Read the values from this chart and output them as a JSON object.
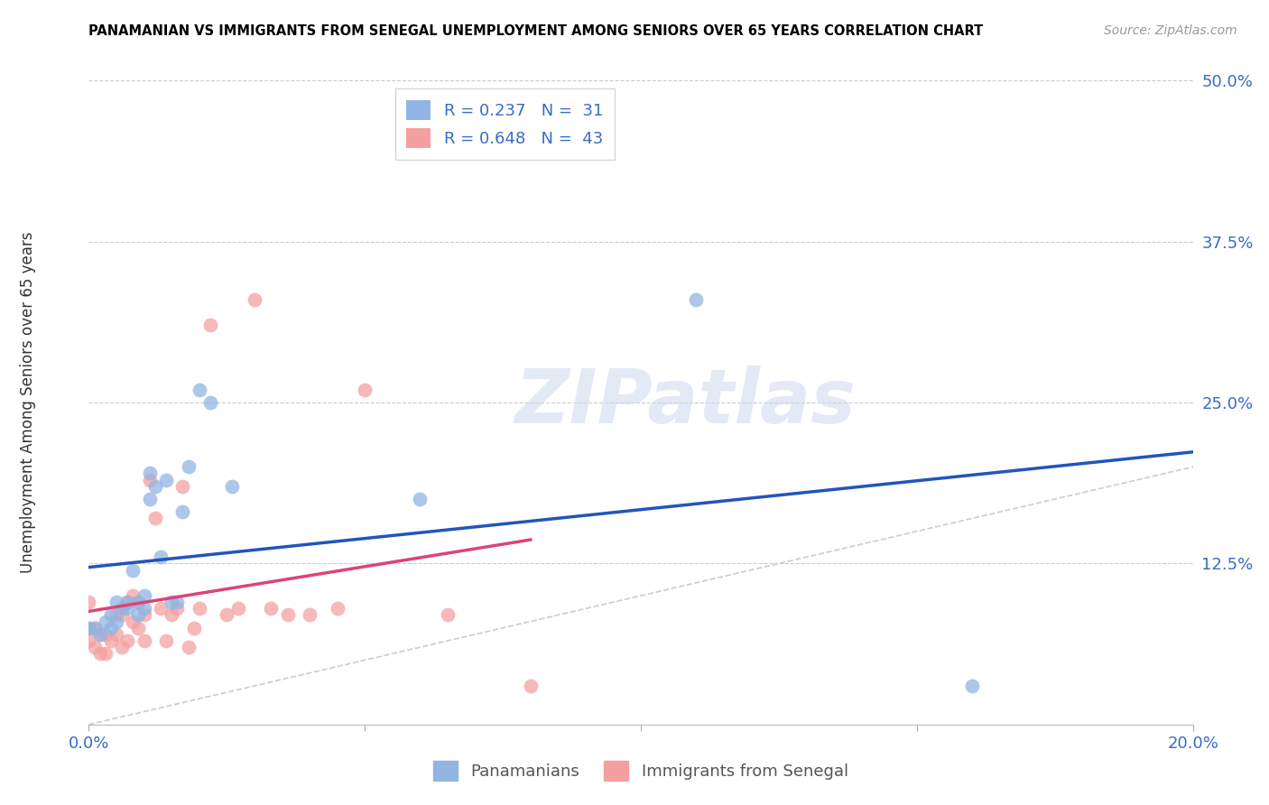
{
  "title": "PANAMANIAN VS IMMIGRANTS FROM SENEGAL UNEMPLOYMENT AMONG SENIORS OVER 65 YEARS CORRELATION CHART",
  "source": "Source: ZipAtlas.com",
  "ylabel_label": "Unemployment Among Seniors over 65 years",
  "xlim": [
    0.0,
    0.2
  ],
  "ylim": [
    0.0,
    0.5
  ],
  "xticks": [
    0.0,
    0.05,
    0.1,
    0.15,
    0.2
  ],
  "xticklabels": [
    "0.0%",
    "",
    "",
    "",
    "20.0%"
  ],
  "yticks": [
    0.0,
    0.125,
    0.25,
    0.375,
    0.5
  ],
  "yticklabels": [
    "",
    "12.5%",
    "25.0%",
    "37.5%",
    "50.0%"
  ],
  "legend_R1": "R = 0.237",
  "legend_N1": "N =  31",
  "legend_R2": "R = 0.648",
  "legend_N2": "N =  43",
  "color_blue": "#92b4e3",
  "color_pink": "#f4a0a0",
  "color_blue_line": "#2255bb",
  "color_pink_line": "#dd4477",
  "color_diag": "#cccccc",
  "watermark_text": "ZIPatlas",
  "panamanian_x": [
    0.0,
    0.001,
    0.002,
    0.003,
    0.004,
    0.004,
    0.005,
    0.005,
    0.006,
    0.007,
    0.007,
    0.008,
    0.009,
    0.009,
    0.01,
    0.01,
    0.011,
    0.011,
    0.012,
    0.013,
    0.014,
    0.015,
    0.016,
    0.017,
    0.018,
    0.02,
    0.022,
    0.026,
    0.06,
    0.11,
    0.16
  ],
  "panamanian_y": [
    0.075,
    0.075,
    0.07,
    0.08,
    0.075,
    0.085,
    0.08,
    0.095,
    0.09,
    0.09,
    0.095,
    0.12,
    0.085,
    0.095,
    0.09,
    0.1,
    0.175,
    0.195,
    0.185,
    0.13,
    0.19,
    0.095,
    0.095,
    0.165,
    0.2,
    0.26,
    0.25,
    0.185,
    0.175,
    0.33,
    0.03
  ],
  "senegal_x": [
    0.0,
    0.0,
    0.0,
    0.001,
    0.001,
    0.002,
    0.002,
    0.003,
    0.003,
    0.004,
    0.005,
    0.005,
    0.006,
    0.006,
    0.007,
    0.007,
    0.008,
    0.008,
    0.009,
    0.009,
    0.01,
    0.01,
    0.011,
    0.012,
    0.013,
    0.014,
    0.015,
    0.016,
    0.017,
    0.018,
    0.019,
    0.02,
    0.022,
    0.025,
    0.027,
    0.03,
    0.033,
    0.036,
    0.04,
    0.045,
    0.05,
    0.065,
    0.08
  ],
  "senegal_y": [
    0.065,
    0.075,
    0.095,
    0.06,
    0.075,
    0.055,
    0.07,
    0.055,
    0.07,
    0.065,
    0.07,
    0.085,
    0.06,
    0.085,
    0.065,
    0.095,
    0.08,
    0.1,
    0.075,
    0.095,
    0.065,
    0.085,
    0.19,
    0.16,
    0.09,
    0.065,
    0.085,
    0.09,
    0.185,
    0.06,
    0.075,
    0.09,
    0.31,
    0.085,
    0.09,
    0.33,
    0.09,
    0.085,
    0.085,
    0.09,
    0.26,
    0.085,
    0.03
  ]
}
